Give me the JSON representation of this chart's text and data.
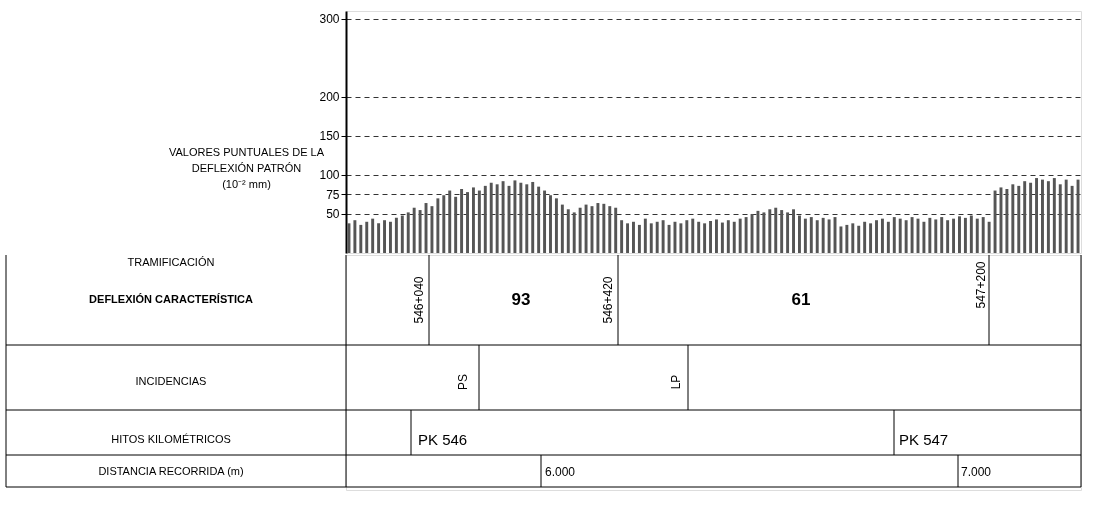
{
  "chart_data": {
    "type": "bar",
    "ylabel": "VALORES PUNTUALES DE LA DEFLEXIÓN PATRÓN (10⁻² mm)",
    "categories": [
      null,
      null,
      null,
      null,
      null,
      null,
      null,
      null,
      null,
      null,
      null,
      null,
      null,
      null,
      null,
      null,
      null,
      null,
      null,
      null,
      null,
      null,
      null,
      null,
      null,
      null,
      null,
      null,
      null,
      null,
      null,
      null,
      null,
      null,
      null,
      null,
      null,
      null,
      null,
      null,
      null,
      null,
      null,
      null,
      null,
      null,
      null,
      null,
      null,
      null,
      null,
      null,
      null,
      null,
      null,
      null,
      null,
      null,
      null,
      null,
      null,
      null,
      null,
      null,
      null,
      null,
      null,
      null,
      null,
      null,
      null,
      null,
      null,
      null,
      null,
      null,
      null,
      null,
      null,
      null,
      null,
      null,
      null,
      null,
      null,
      null,
      null,
      null,
      null,
      null,
      null,
      null,
      null,
      null,
      null,
      null,
      null,
      null,
      null,
      null,
      null,
      null,
      null,
      null,
      null,
      null,
      null,
      null,
      null,
      null,
      null,
      null,
      null,
      null,
      null,
      null,
      null,
      null,
      null,
      null,
      null,
      null,
      null,
      null
    ],
    "values": [
      38,
      42,
      36,
      40,
      44,
      38,
      42,
      40,
      45,
      48,
      52,
      58,
      55,
      64,
      60,
      70,
      74,
      80,
      72,
      82,
      78,
      84,
      80,
      86,
      90,
      88,
      92,
      86,
      93,
      90,
      88,
      91,
      85,
      80,
      74,
      70,
      62,
      56,
      52,
      58,
      62,
      60,
      64,
      63,
      60,
      58,
      42,
      38,
      40,
      36,
      44,
      38,
      40,
      42,
      36,
      40,
      38,
      42,
      44,
      40,
      38,
      41,
      43,
      39,
      42,
      40,
      44,
      46,
      50,
      54,
      52,
      56,
      58,
      55,
      52,
      56,
      48,
      44,
      46,
      42,
      45,
      43,
      46,
      34,
      36,
      38,
      35,
      40,
      38,
      42,
      44,
      40,
      46,
      44,
      42,
      46,
      44,
      40,
      45,
      43,
      46,
      42,
      44,
      47,
      45,
      48,
      44,
      46,
      40,
      80,
      84,
      82,
      88,
      86,
      92,
      90,
      96,
      94,
      92,
      96,
      88,
      94,
      86,
      94
    ],
    "color": "#555555",
    "ylim": [
      0,
      310
    ],
    "yticks": [
      50,
      75,
      100,
      150,
      200,
      300
    ],
    "grid": "y",
    "tick_labels": "y",
    "annotations": [
      "TRAMIFICACIÓN",
      "DEFLEXIÓN CARACTERÍSTICA",
      "546+040",
      "93",
      "546+420",
      "61",
      "547+200",
      "INCIDENCIAS",
      "PS",
      "LP",
      "HITOS KILOMÉTRICOS",
      "PK 546",
      "PK 547",
      "DISTANCIA RECORRIDA (m)",
      "6.000",
      "7.000"
    ]
  }
}
